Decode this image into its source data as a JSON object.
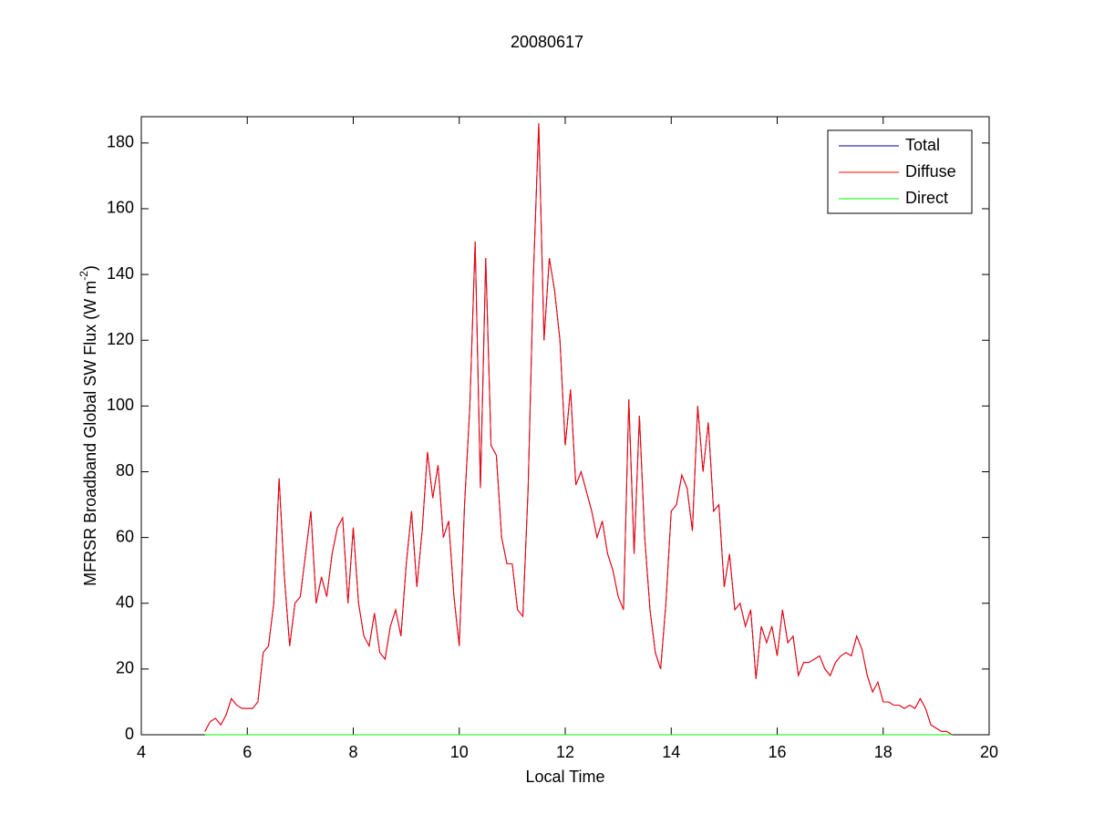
{
  "chart_data": {
    "type": "line",
    "title": "20080617",
    "xlabel": "Local Time",
    "ylabel": {
      "main": "MFRSR Broadband Global SW Flux (W m",
      "sup": "-2",
      "end": ")"
    },
    "xlim": [
      4,
      20
    ],
    "xticks": [
      4,
      6,
      8,
      10,
      12,
      14,
      16,
      18,
      20
    ],
    "ylim": [
      0,
      188
    ],
    "yticks": [
      0,
      20,
      40,
      60,
      80,
      100,
      120,
      140,
      160,
      180
    ],
    "legend": "upper right",
    "x": [
      5.2,
      5.3,
      5.4,
      5.5,
      5.6,
      5.7,
      5.8,
      5.9,
      6.0,
      6.1,
      6.2,
      6.3,
      6.4,
      6.5,
      6.6,
      6.7,
      6.8,
      6.9,
      7.0,
      7.1,
      7.2,
      7.3,
      7.4,
      7.5,
      7.6,
      7.7,
      7.8,
      7.9,
      8.0,
      8.1,
      8.2,
      8.3,
      8.4,
      8.5,
      8.6,
      8.7,
      8.8,
      8.9,
      9.0,
      9.1,
      9.2,
      9.3,
      9.4,
      9.5,
      9.6,
      9.7,
      9.8,
      9.9,
      10.0,
      10.1,
      10.2,
      10.3,
      10.4,
      10.5,
      10.6,
      10.7,
      10.8,
      10.9,
      11.0,
      11.1,
      11.2,
      11.3,
      11.4,
      11.5,
      11.6,
      11.7,
      11.8,
      11.9,
      12.0,
      12.1,
      12.2,
      12.3,
      12.4,
      12.5,
      12.6,
      12.7,
      12.8,
      12.9,
      13.0,
      13.1,
      13.2,
      13.3,
      13.4,
      13.5,
      13.6,
      13.7,
      13.8,
      13.9,
      14.0,
      14.1,
      14.2,
      14.3,
      14.4,
      14.5,
      14.6,
      14.7,
      14.8,
      14.9,
      15.0,
      15.1,
      15.2,
      15.3,
      15.4,
      15.5,
      15.6,
      15.7,
      15.8,
      15.9,
      16.0,
      16.1,
      16.2,
      16.3,
      16.4,
      16.5,
      16.6,
      16.7,
      16.8,
      16.9,
      17.0,
      17.1,
      17.2,
      17.3,
      17.4,
      17.5,
      17.6,
      17.7,
      17.8,
      17.9,
      18.0,
      18.1,
      18.2,
      18.3,
      18.4,
      18.5,
      18.6,
      18.7,
      18.8,
      18.9,
      19.0,
      19.1,
      19.2,
      19.3
    ],
    "series": [
      {
        "name": "Total",
        "color": "#00008b",
        "values": [
          1,
          4,
          5,
          3,
          6,
          11,
          9,
          8,
          8,
          8,
          10,
          25,
          27,
          40,
          78,
          48,
          27,
          40,
          42,
          55,
          68,
          40,
          48,
          42,
          55,
          63,
          66,
          40,
          63,
          40,
          30,
          27,
          37,
          25,
          23,
          33,
          38,
          30,
          52,
          68,
          45,
          62,
          86,
          72,
          82,
          60,
          65,
          42,
          27,
          70,
          100,
          150,
          75,
          145,
          88,
          85,
          60,
          52,
          52,
          38,
          36,
          75,
          140,
          186,
          120,
          145,
          135,
          120,
          88,
          105,
          76,
          80,
          74,
          68,
          60,
          65,
          55,
          50,
          42,
          38,
          102,
          55,
          97,
          60,
          38,
          25,
          20,
          40,
          68,
          70,
          79,
          75,
          62,
          100,
          80,
          95,
          68,
          70,
          45,
          55,
          38,
          40,
          33,
          38,
          17,
          33,
          28,
          33,
          24,
          38,
          28,
          30,
          18,
          22,
          22,
          23,
          24,
          20,
          18,
          22,
          24,
          25,
          24,
          30,
          26,
          18,
          13,
          16,
          10,
          10,
          9,
          9,
          8,
          9,
          8,
          11,
          8,
          3,
          2,
          1,
          1,
          0
        ]
      },
      {
        "name": "Diffuse",
        "color": "#ff0000",
        "values": [
          1,
          4,
          5,
          3,
          6,
          11,
          9,
          8,
          8,
          8,
          10,
          25,
          27,
          40,
          78,
          48,
          27,
          40,
          42,
          55,
          68,
          40,
          48,
          42,
          55,
          63,
          66,
          40,
          63,
          40,
          30,
          27,
          37,
          25,
          23,
          33,
          38,
          30,
          52,
          68,
          45,
          62,
          86,
          72,
          82,
          60,
          65,
          42,
          27,
          70,
          100,
          150,
          75,
          145,
          88,
          85,
          60,
          52,
          52,
          38,
          36,
          75,
          140,
          186,
          120,
          145,
          135,
          120,
          88,
          105,
          76,
          80,
          74,
          68,
          60,
          65,
          55,
          50,
          42,
          38,
          102,
          55,
          97,
          60,
          38,
          25,
          20,
          40,
          68,
          70,
          79,
          75,
          62,
          100,
          80,
          95,
          68,
          70,
          45,
          55,
          38,
          40,
          33,
          38,
          17,
          33,
          28,
          33,
          24,
          38,
          28,
          30,
          18,
          22,
          22,
          23,
          24,
          20,
          18,
          22,
          24,
          25,
          24,
          30,
          26,
          18,
          13,
          16,
          10,
          10,
          9,
          9,
          8,
          9,
          8,
          11,
          8,
          3,
          2,
          1,
          1,
          0
        ]
      },
      {
        "name": "Direct",
        "color": "#00ff00",
        "values": [
          0,
          0,
          0,
          0,
          0,
          0,
          0,
          0,
          0,
          0,
          0,
          0,
          0,
          0,
          0,
          0,
          0,
          0,
          0,
          0,
          0,
          0,
          0,
          0,
          0,
          0,
          0,
          0,
          0,
          0,
          0,
          0,
          0,
          0,
          0,
          0,
          0,
          0,
          0,
          0,
          0,
          0,
          0,
          0,
          0,
          0,
          0,
          0,
          0,
          0,
          0,
          0,
          0,
          0,
          0,
          0,
          0,
          0,
          0,
          0,
          0,
          0,
          0,
          0,
          0,
          0,
          0,
          0,
          0,
          0,
          0,
          0,
          0,
          0,
          0,
          0,
          0,
          0,
          0,
          0,
          0,
          0,
          0,
          0,
          0,
          0,
          0,
          0,
          0,
          0,
          0,
          0,
          0,
          0,
          0,
          0,
          0,
          0,
          0,
          0,
          0,
          0,
          0,
          0,
          0,
          0,
          0,
          0,
          0,
          0,
          0,
          0,
          0,
          0,
          0,
          0,
          0,
          0,
          0,
          0,
          0,
          0,
          0,
          0,
          0,
          0,
          0,
          0,
          0,
          0,
          0,
          0,
          0,
          0,
          0,
          0,
          0,
          0,
          0,
          0,
          0,
          0
        ]
      }
    ]
  }
}
